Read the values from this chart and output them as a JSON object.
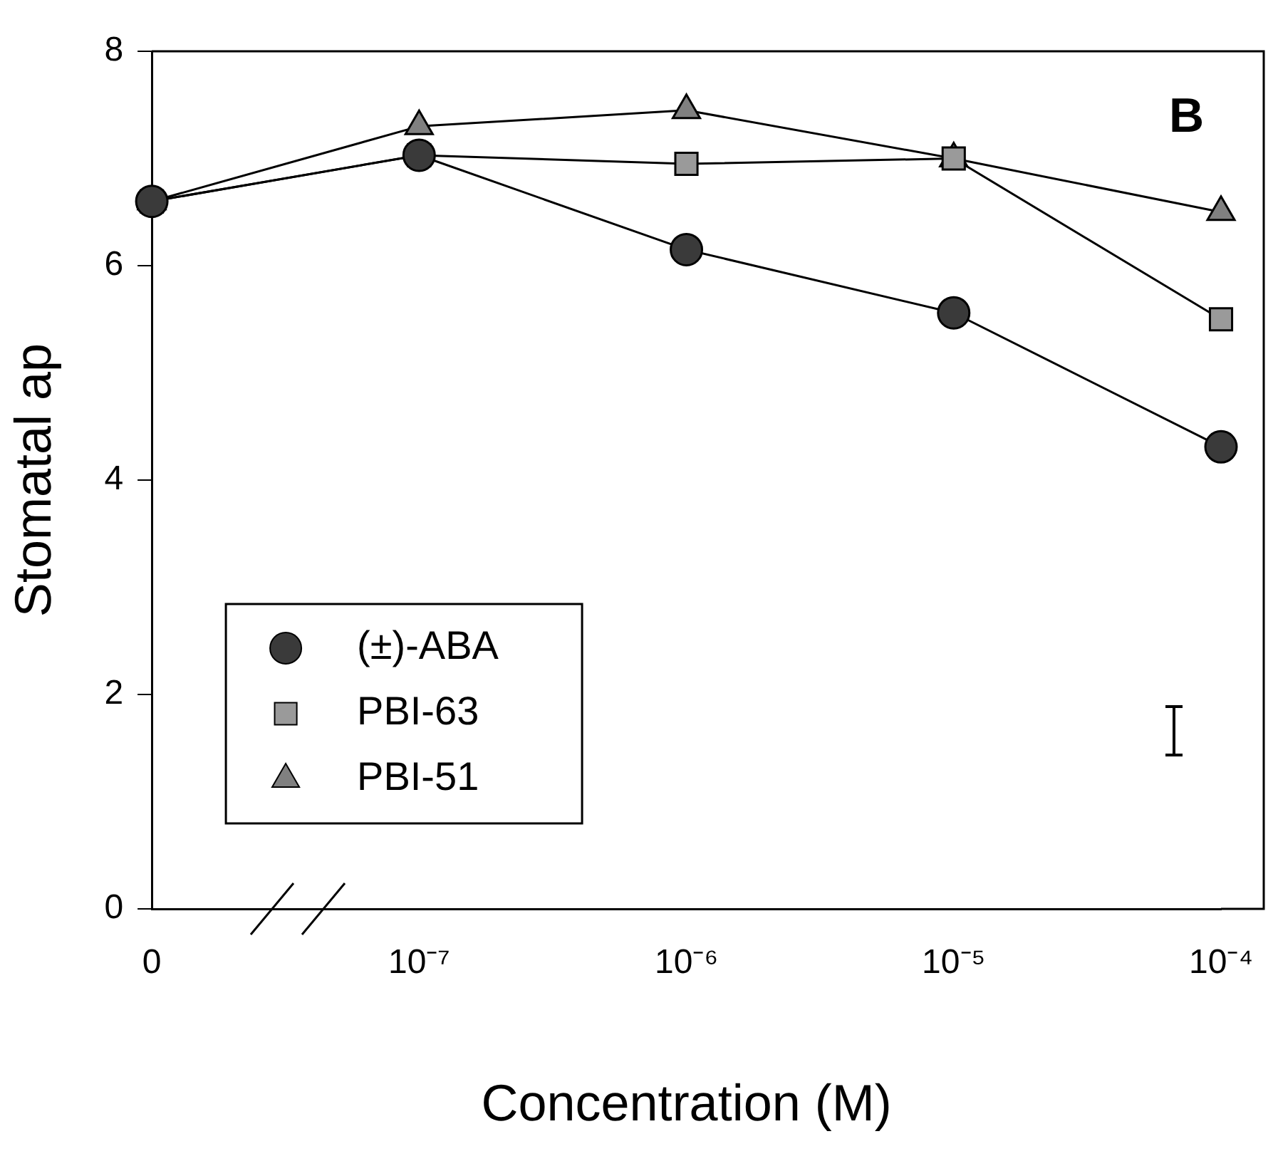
{
  "chart_data": {
    "type": "line",
    "xlabel": "Concentration (M)",
    "ylabel": "Stomatal ap",
    "categories": [
      "0",
      "10⁻⁷",
      "10⁻⁶",
      "10⁻⁵",
      "10⁻⁴"
    ],
    "series": [
      {
        "name": "(±)-ABA",
        "color": "#3a3a3a",
        "marker": "circle",
        "values": [
          6.6,
          7.03,
          6.15,
          5.56,
          4.31
        ]
      },
      {
        "name": "PBI-63",
        "color": "#9a9a9a",
        "marker": "square",
        "values": [
          6.6,
          7.03,
          6.95,
          7.0,
          5.5
        ]
      },
      {
        "name": "PBI-51",
        "color": "#808080",
        "marker": "triangle",
        "values": [
          6.6,
          7.3,
          7.45,
          7.0,
          6.5
        ]
      }
    ],
    "ylim": [
      0,
      8
    ],
    "yticks": [
      0,
      2,
      4,
      6,
      8
    ],
    "grid": false,
    "legend": "bottom left",
    "line_style": "solid",
    "annotations": [
      "B"
    ]
  }
}
